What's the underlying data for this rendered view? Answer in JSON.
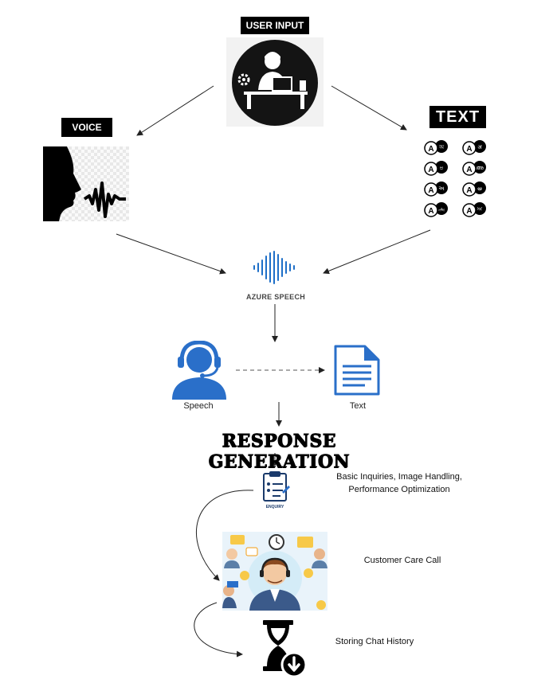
{
  "labels": {
    "user_input": "USER INPUT",
    "voice": "VOICE",
    "text": "TEXT",
    "azure_speech": "AZURE SPEECH",
    "speech": "Speech",
    "text_doc": "Text",
    "response_generation": "RESPONSE GENERATION",
    "basic_inquiries": "Basic Inquiries, Image Handling, Performance Optimization",
    "enquiry": "ENQUIRY",
    "customer_care_call": "Customer Care Call",
    "storing_chat_history": "Storing Chat History"
  },
  "language_pairs": [
    {
      "left": "A",
      "right": "অ"
    },
    {
      "left": "A",
      "right": "अ"
    },
    {
      "left": "A",
      "right": "ಅ"
    },
    {
      "left": "A",
      "right": "അ"
    },
    {
      "left": "A",
      "right": "અ"
    },
    {
      "left": "A",
      "right": "ఆ"
    },
    {
      "left": "A",
      "right": "அ"
    },
    {
      "left": "A",
      "right": "ਅ"
    }
  ],
  "colors": {
    "azure_blue": "#1e6fc8",
    "icon_blue": "#2a6fc9",
    "black": "#000000"
  }
}
